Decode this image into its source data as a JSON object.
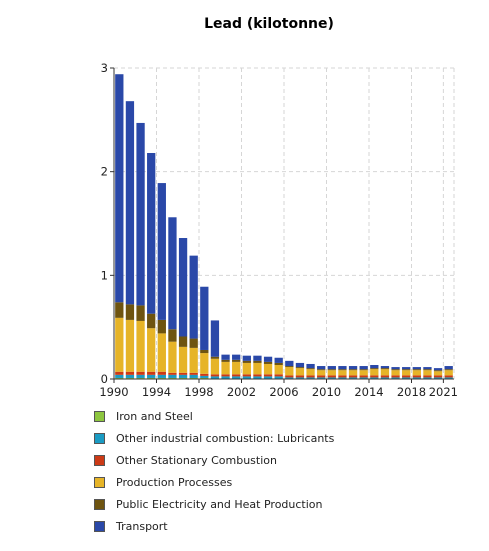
{
  "chart_data": {
    "type": "bar",
    "stacked": true,
    "title": "Lead (kilotonne)",
    "xlabel": "",
    "ylabel": "",
    "ylim": [
      0,
      3
    ],
    "yticks": [
      "0",
      "1",
      "2",
      "3"
    ],
    "xticks": [
      "1990",
      "1994",
      "1998",
      "2002",
      "2006",
      "2010",
      "2014",
      "2018",
      "2021"
    ],
    "grid": true,
    "legend_position": "bottom",
    "categories": [
      "1990",
      "1991",
      "1992",
      "1993",
      "1994",
      "1995",
      "1996",
      "1997",
      "1998",
      "1999",
      "2000",
      "2001",
      "2002",
      "2003",
      "2004",
      "2005",
      "2006",
      "2007",
      "2008",
      "2009",
      "2010",
      "2011",
      "2012",
      "2013",
      "2014",
      "2015",
      "2016",
      "2017",
      "2018",
      "2019",
      "2020",
      "2021"
    ],
    "series": [
      {
        "name": "Iron and Steel",
        "color": "#8dc63f",
        "values": [
          0.01,
          0.01,
          0.01,
          0.01,
          0.01,
          0.01,
          0.01,
          0.01,
          0.01,
          0.005,
          0.005,
          0.005,
          0.005,
          0.005,
          0.005,
          0.005,
          0.005,
          0.005,
          0.005,
          0.005,
          0.005,
          0.005,
          0.005,
          0.005,
          0.005,
          0.005,
          0.005,
          0.005,
          0.005,
          0.005,
          0.005,
          0.005
        ]
      },
      {
        "name": "Other industrial combustion: Lubricants",
        "color": "#1a9bc3",
        "values": [
          0.03,
          0.03,
          0.03,
          0.03,
          0.03,
          0.03,
          0.03,
          0.03,
          0.02,
          0.02,
          0.02,
          0.02,
          0.02,
          0.02,
          0.02,
          0.02,
          0.01,
          0.01,
          0.01,
          0.01,
          0.01,
          0.01,
          0.01,
          0.01,
          0.01,
          0.01,
          0.01,
          0.01,
          0.01,
          0.01,
          0.01,
          0.01
        ]
      },
      {
        "name": "Other Stationary Combustion",
        "color": "#cc3a16",
        "values": [
          0.03,
          0.03,
          0.03,
          0.03,
          0.03,
          0.02,
          0.02,
          0.02,
          0.02,
          0.02,
          0.02,
          0.02,
          0.02,
          0.02,
          0.02,
          0.02,
          0.02,
          0.02,
          0.02,
          0.02,
          0.02,
          0.02,
          0.02,
          0.02,
          0.02,
          0.02,
          0.02,
          0.02,
          0.02,
          0.02,
          0.02,
          0.02
        ]
      },
      {
        "name": "Production Processes",
        "color": "#e6b428",
        "values": [
          0.52,
          0.5,
          0.49,
          0.42,
          0.37,
          0.3,
          0.25,
          0.24,
          0.2,
          0.15,
          0.12,
          0.12,
          0.11,
          0.11,
          0.1,
          0.09,
          0.08,
          0.07,
          0.06,
          0.05,
          0.05,
          0.05,
          0.05,
          0.05,
          0.06,
          0.06,
          0.05,
          0.05,
          0.05,
          0.05,
          0.04,
          0.05
        ]
      },
      {
        "name": "Public Electricity and Heat Production",
        "color": "#6e5410",
        "values": [
          0.15,
          0.15,
          0.15,
          0.14,
          0.13,
          0.12,
          0.1,
          0.09,
          0.03,
          0.02,
          0.02,
          0.02,
          0.02,
          0.02,
          0.02,
          0.02,
          0.01,
          0.01,
          0.01,
          0.01,
          0.01,
          0.01,
          0.01,
          0.01,
          0.01,
          0.01,
          0.01,
          0.01,
          0.01,
          0.01,
          0.01,
          0.01
        ]
      },
      {
        "name": "Transport",
        "color": "#2a48a8",
        "values": [
          2.2,
          1.96,
          1.76,
          1.55,
          1.32,
          1.08,
          0.95,
          0.8,
          0.61,
          0.35,
          0.05,
          0.05,
          0.05,
          0.05,
          0.05,
          0.05,
          0.05,
          0.04,
          0.04,
          0.03,
          0.03,
          0.03,
          0.03,
          0.03,
          0.03,
          0.02,
          0.02,
          0.02,
          0.02,
          0.02,
          0.02,
          0.03
        ]
      }
    ]
  }
}
